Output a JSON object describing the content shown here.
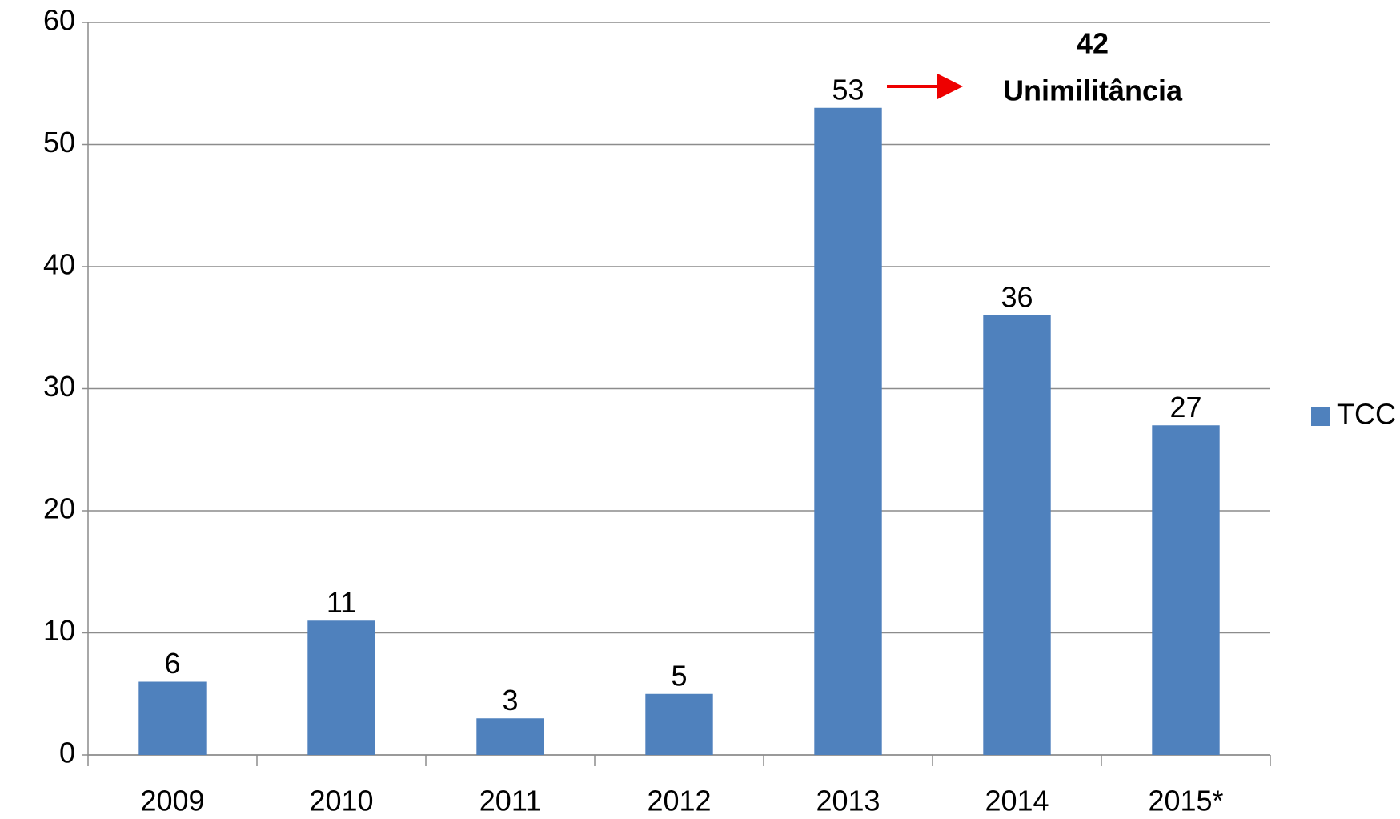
{
  "chart_data": {
    "type": "bar",
    "categories": [
      "2009",
      "2010",
      "2011",
      "2012",
      "2013",
      "2014",
      "2015*"
    ],
    "series": [
      {
        "name": "TCC",
        "color": "#4f81bd",
        "values": [
          6,
          11,
          3,
          5,
          53,
          36,
          27
        ]
      }
    ],
    "ylim": [
      0,
      60
    ],
    "yticks": [
      0,
      10,
      20,
      30,
      40,
      50,
      60
    ],
    "grid": true,
    "legend": "right",
    "annotations": [
      "42",
      "Unimilitância"
    ]
  }
}
